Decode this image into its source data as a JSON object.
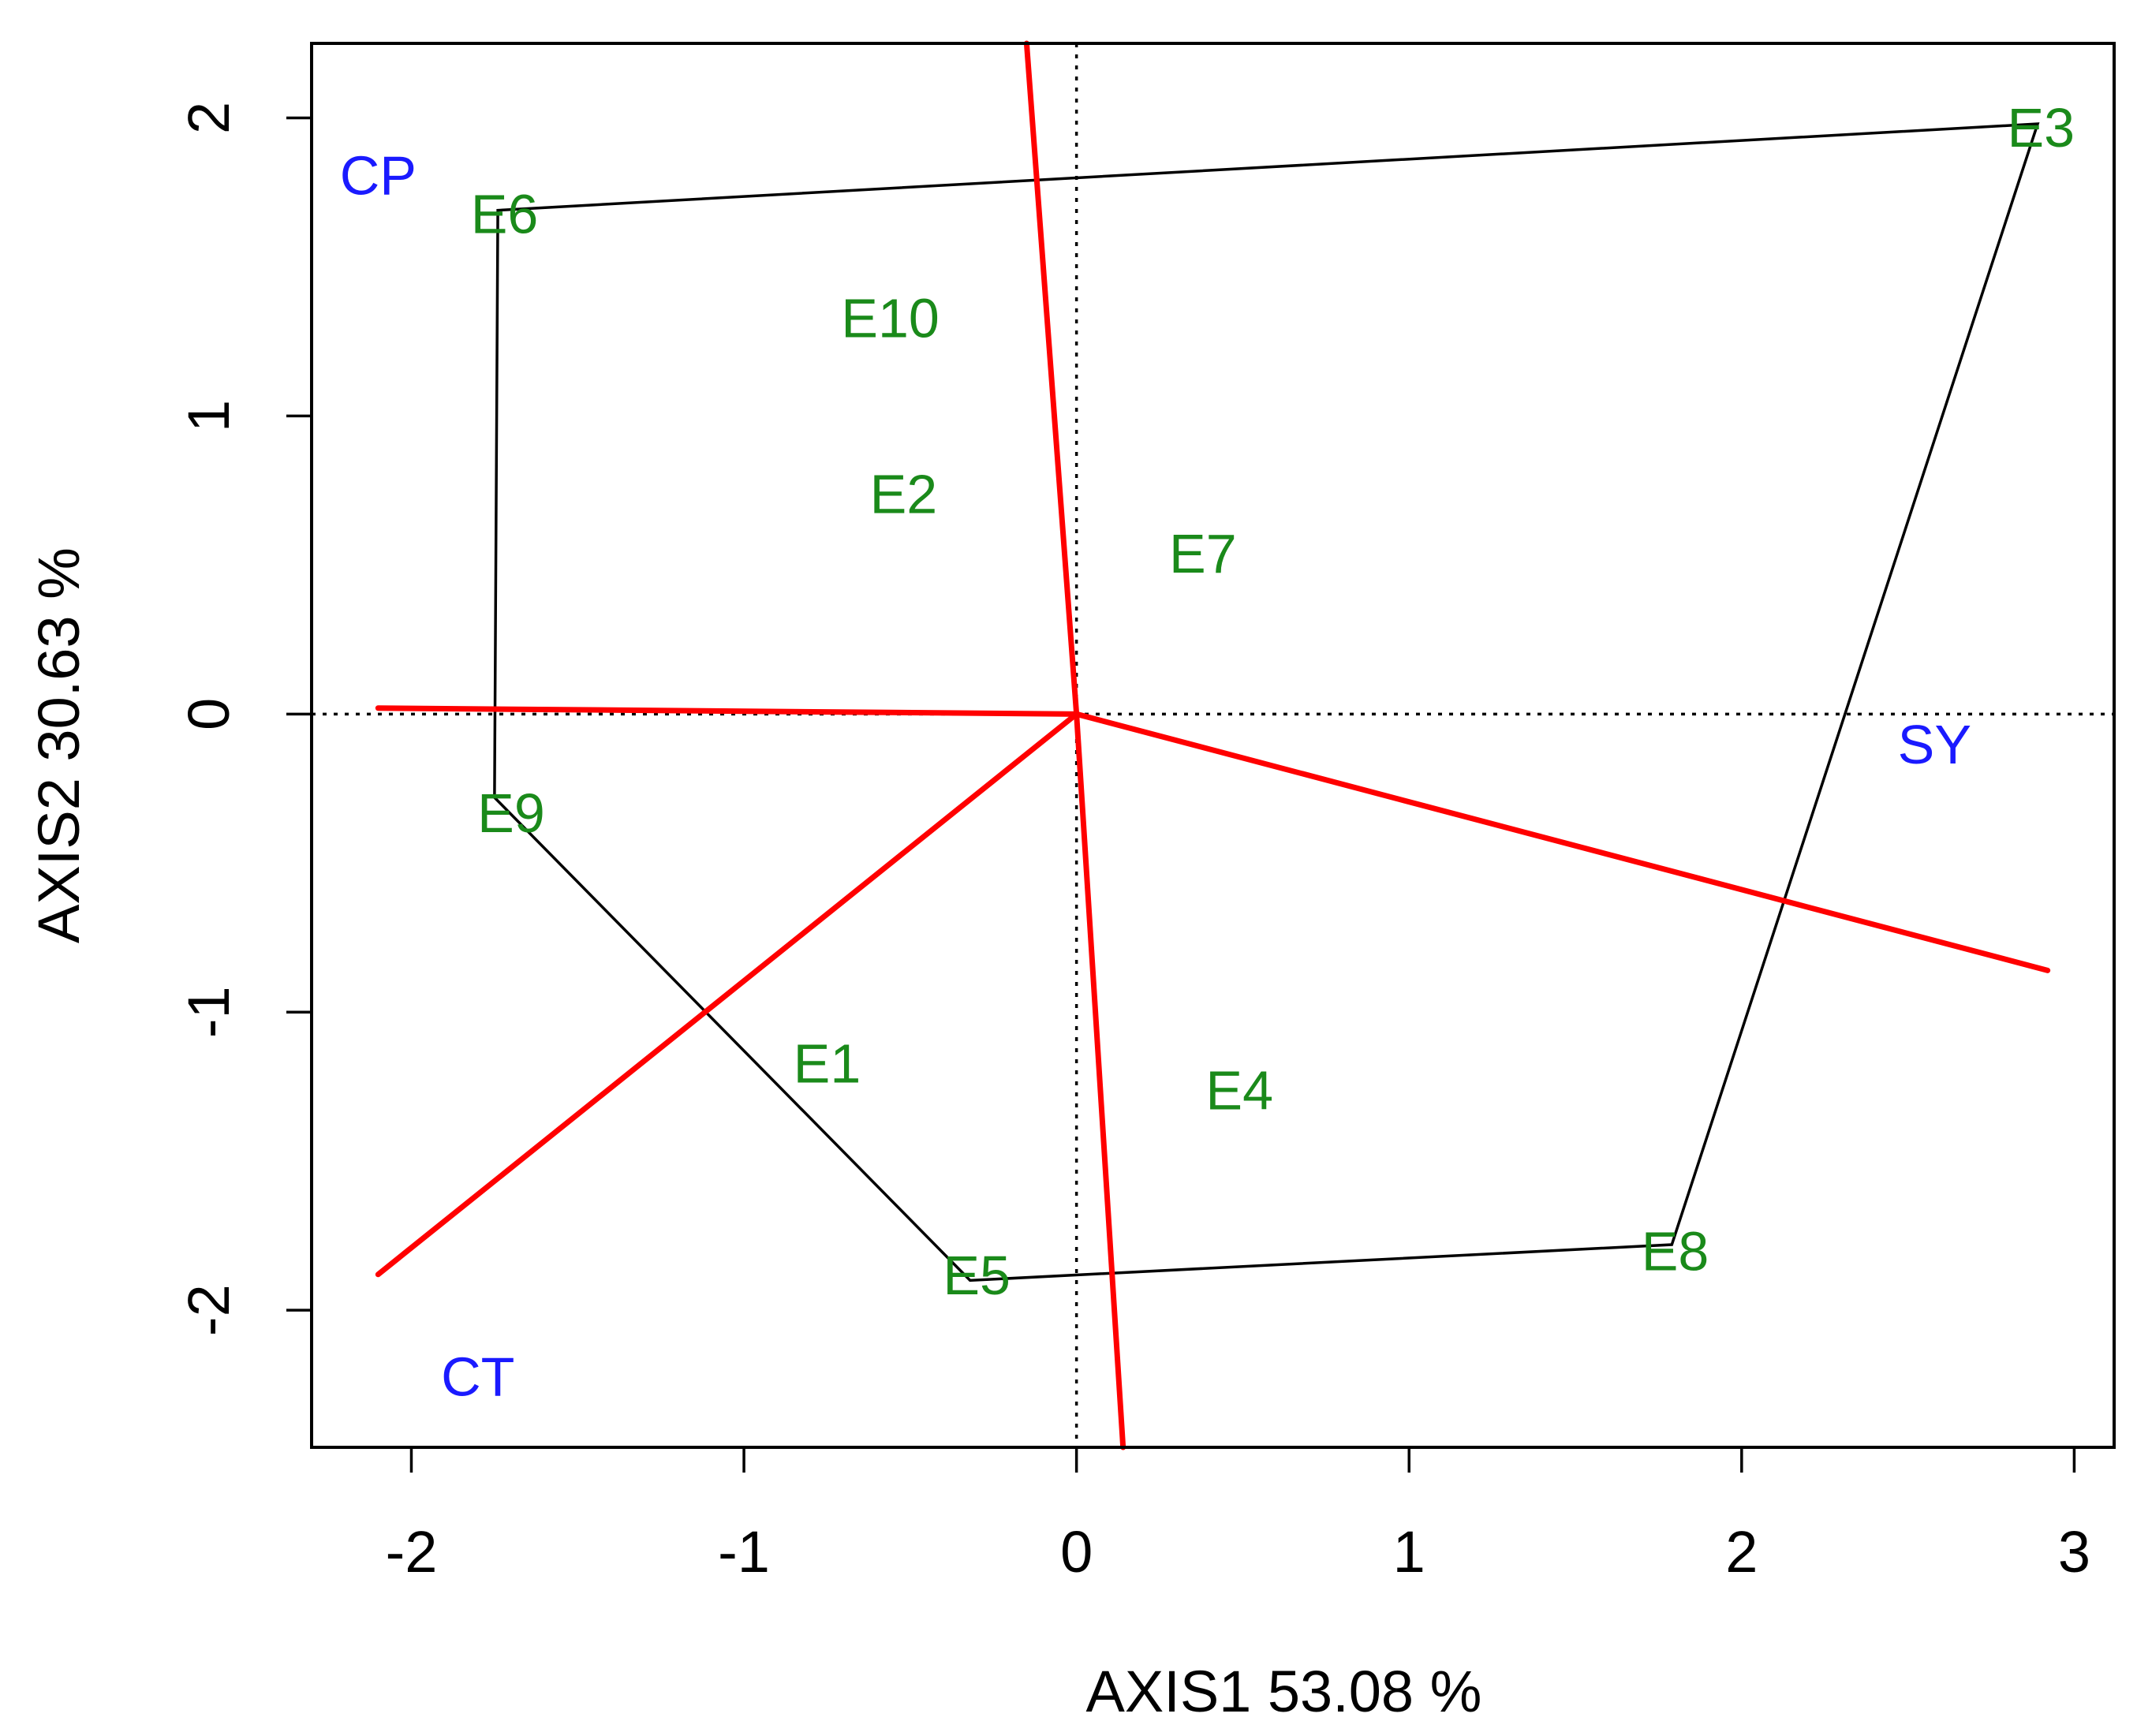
{
  "chart_data": {
    "type": "scatter",
    "subtype": "GGE biplot (which-won-where polygon view)",
    "xlabel": "AXIS1 53.08 %",
    "ylabel": "AXIS2 30.63 %",
    "xlim": [
      -2.3,
      3.12
    ],
    "ylim": [
      -2.46,
      2.25
    ],
    "xticks": [
      -2,
      -1,
      0,
      1,
      2,
      3
    ],
    "yticks": [
      -2,
      -1,
      0,
      1,
      2
    ],
    "reference_lines": {
      "x": 0,
      "y": 0,
      "style": "dotted"
    },
    "colors": {
      "environment_labels": "#1a8a1a",
      "genotype_labels": "#1a1aff",
      "polygon": "#000000",
      "sector_rays": "#ff0000"
    },
    "environments": [
      {
        "label": "E1",
        "x": -0.75,
        "y": -1.17
      },
      {
        "label": "E2",
        "x": -0.52,
        "y": 0.74
      },
      {
        "label": "E3",
        "x": 2.9,
        "y": 1.97
      },
      {
        "label": "E4",
        "x": 0.49,
        "y": -1.26
      },
      {
        "label": "E5",
        "x": -0.3,
        "y": -1.88
      },
      {
        "label": "E6",
        "x": -1.72,
        "y": 1.68
      },
      {
        "label": "E7",
        "x": 0.38,
        "y": 0.54
      },
      {
        "label": "E8",
        "x": 1.8,
        "y": -1.8
      },
      {
        "label": "E9",
        "x": -1.7,
        "y": -0.33
      },
      {
        "label": "E10",
        "x": -0.56,
        "y": 1.33
      }
    ],
    "genotypes": [
      {
        "label": "CP",
        "x": -2.1,
        "y": 1.81
      },
      {
        "label": "SY",
        "x": 2.58,
        "y": -0.1
      },
      {
        "label": "CT",
        "x": -1.8,
        "y": -2.22
      }
    ],
    "polygon": [
      [
        2.89,
        1.98
      ],
      [
        1.79,
        -1.78
      ],
      [
        -0.32,
        -1.9
      ],
      [
        -1.75,
        -0.28
      ],
      [
        -1.74,
        1.69
      ]
    ],
    "sector_rays": [
      [
        -0.15,
        2.25
      ],
      [
        0.14,
        -2.46
      ],
      [
        -2.1,
        0.02
      ],
      [
        2.92,
        -0.86
      ],
      [
        -2.1,
        -1.88
      ]
    ]
  }
}
